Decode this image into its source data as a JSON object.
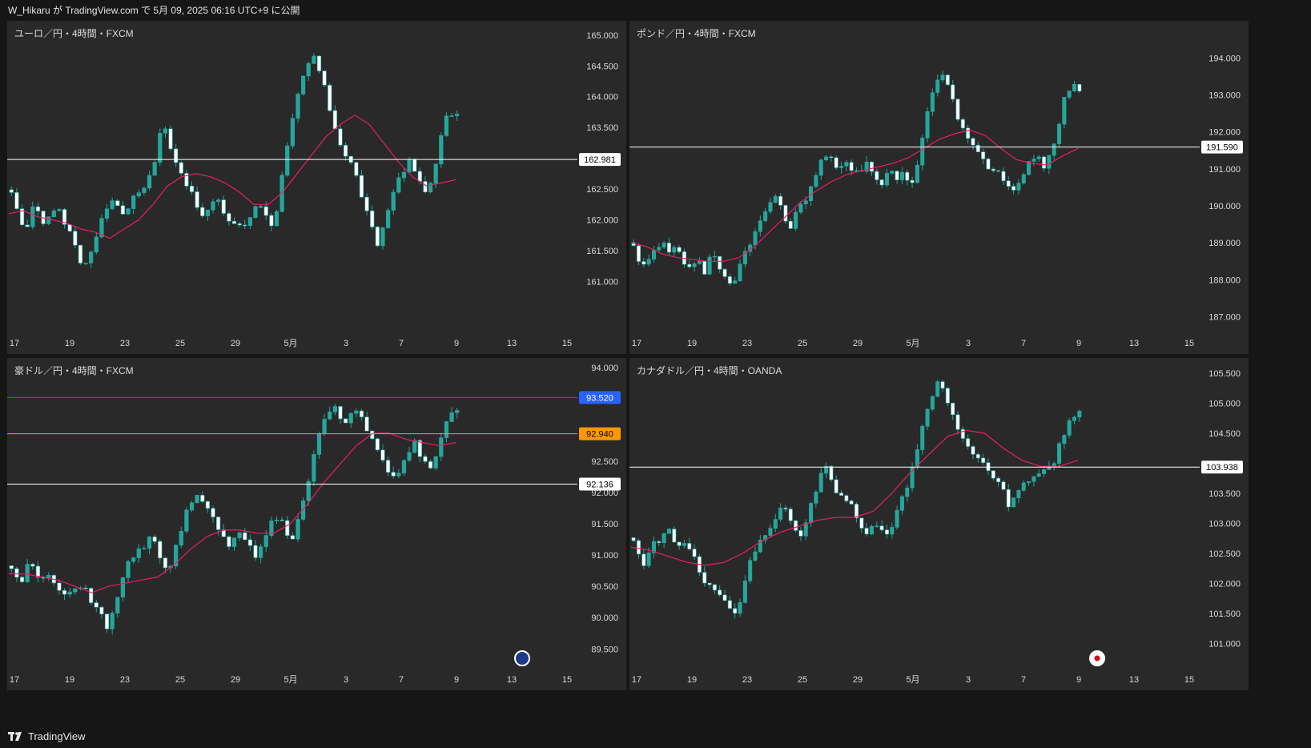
{
  "header": {
    "text": "W_Hikaru が TradingView.com で 5月 09, 2025 06:16 UTC+9 に公開"
  },
  "footer": {
    "brand": "TradingView"
  },
  "colors": {
    "up": "#26a69a",
    "down": "#ffffff",
    "ma": "#e91e63",
    "bg": "#292929",
    "axis_text": "#d8d8d8",
    "grid_bg": "#161616"
  },
  "x_axis": {
    "ticks": [
      "17",
      "19",
      "23",
      "25",
      "29",
      "5月",
      "3",
      "7",
      "9",
      "13",
      "15"
    ]
  },
  "chart_data": [
    {
      "type": "candlestick",
      "title": "ユーロ／円・4時間・FXCM",
      "y_ticks": [
        165.0,
        164.5,
        164.0,
        163.5,
        163.0,
        162.5,
        162.0,
        161.5,
        161.0
      ],
      "y_tick_labels": [
        "165.000",
        "164.500",
        "164.000",
        "163.500",
        "163.000",
        "162.500",
        "162.000",
        "161.500",
        "161.000"
      ],
      "ylim": [
        160.55,
        165.05
      ],
      "hlines": [
        {
          "value": 162.981,
          "label": "162.981",
          "color": "#ffffff",
          "label_bg": "#ffffff",
          "label_fg": "#000000"
        }
      ],
      "path": [
        162.4,
        162.0,
        161.9,
        162.3,
        161.95,
        162.1,
        162.2,
        161.85,
        161.6,
        161.2,
        161.5,
        161.9,
        162.2,
        162.4,
        162.05,
        162.3,
        162.45,
        162.6,
        162.95,
        163.6,
        163.2,
        162.85,
        162.6,
        162.3,
        162.05,
        162.2,
        162.35,
        162.0,
        161.95,
        161.85,
        162.05,
        162.35,
        162.05,
        161.9,
        162.7,
        163.4,
        164.0,
        164.45,
        164.65,
        164.3,
        163.8,
        163.35,
        163.05,
        162.85,
        162.4,
        161.95,
        161.6,
        162.0,
        162.5,
        162.7,
        162.95,
        162.7,
        162.5,
        162.6,
        163.4,
        163.75,
        163.7
      ],
      "ma": [
        162.1,
        162.15,
        162.05,
        162.0,
        161.95,
        161.85,
        161.8,
        161.7,
        161.85,
        162.0,
        162.25,
        162.55,
        162.7,
        162.75,
        162.7,
        162.6,
        162.45,
        162.25,
        162.25,
        162.45,
        162.75,
        163.05,
        163.35,
        163.55,
        163.7,
        163.55,
        163.25,
        162.95,
        162.7,
        162.55,
        162.6,
        162.65
      ],
      "x_labels": [
        "17",
        "19",
        "23",
        "25",
        "29",
        "5月",
        "3",
        "7",
        "9",
        "13",
        "15"
      ]
    },
    {
      "type": "candlestick",
      "title": "ポンド／円・4時間・FXCM",
      "y_ticks": [
        194.0,
        193.0,
        192.0,
        191.0,
        190.0,
        189.0,
        188.0,
        187.0
      ],
      "y_tick_labels": [
        "194.000",
        "193.000",
        "192.000",
        "191.000",
        "190.000",
        "189.000",
        "188.000",
        "187.000"
      ],
      "ylim": [
        186.6,
        194.7
      ],
      "hlines": [
        {
          "value": 191.59,
          "label": "191.590",
          "color": "#ffffff",
          "label_bg": "#ffffff",
          "label_fg": "#000000"
        }
      ],
      "path": [
        189.0,
        188.2,
        188.6,
        188.9,
        189.0,
        188.8,
        188.9,
        188.5,
        188.35,
        188.6,
        188.2,
        188.7,
        188.4,
        188.0,
        187.9,
        188.4,
        188.9,
        189.2,
        189.6,
        190.0,
        190.3,
        189.8,
        189.4,
        189.8,
        190.1,
        190.5,
        191.0,
        191.4,
        191.2,
        190.9,
        191.2,
        191.0,
        190.95,
        191.2,
        190.8,
        190.55,
        191.0,
        190.75,
        190.9,
        190.55,
        191.0,
        192.1,
        192.9,
        193.5,
        193.6,
        192.9,
        192.2,
        191.9,
        191.6,
        191.3,
        191.1,
        190.9,
        190.8,
        190.5,
        190.4,
        190.85,
        191.2,
        191.3,
        191.05,
        191.5,
        192.1,
        193.0,
        193.3,
        193.2
      ],
      "ma": [
        189.0,
        188.9,
        188.7,
        188.6,
        188.55,
        188.5,
        188.5,
        188.6,
        188.9,
        189.3,
        189.7,
        190.1,
        190.4,
        190.65,
        190.85,
        190.95,
        191.05,
        191.15,
        191.3,
        191.55,
        191.8,
        191.95,
        192.05,
        191.9,
        191.55,
        191.25,
        191.15,
        191.1,
        191.35,
        191.55
      ],
      "x_labels": [
        "17",
        "19",
        "23",
        "25",
        "29",
        "5月",
        "3",
        "7",
        "9",
        "13",
        "15"
      ]
    },
    {
      "type": "candlestick",
      "title": "豪ドル／円・4時間・FXCM",
      "y_ticks": [
        94.0,
        92.5,
        92.0,
        91.5,
        91.0,
        90.5,
        90.0,
        89.5
      ],
      "y_tick_labels": [
        "94.000",
        "92.500",
        "92.000",
        "91.500",
        "91.000",
        "90.500",
        "90.000",
        "89.500"
      ],
      "ylim": [
        89.35,
        94.05
      ],
      "hlines": [
        {
          "value": 93.52,
          "label": "93.520",
          "color": "#2962ff",
          "label_bg": "#2962ff",
          "label_fg": "#ffffff"
        },
        {
          "value": 92.94,
          "label": "92.940",
          "color": "#ff9800",
          "label_bg": "#ff9800",
          "label_fg": "#000000"
        },
        {
          "value": 92.136,
          "label": "92.136",
          "color": "#ffffff",
          "label_bg": "#ffffff",
          "label_fg": "#000000"
        }
      ],
      "path": [
        90.8,
        90.5,
        90.9,
        90.7,
        90.65,
        90.55,
        90.4,
        90.35,
        90.55,
        90.3,
        90.1,
        89.85,
        90.3,
        90.8,
        91.0,
        91.1,
        91.35,
        91.0,
        90.7,
        91.2,
        91.7,
        92.0,
        91.8,
        91.6,
        91.3,
        91.15,
        91.4,
        91.2,
        90.9,
        91.3,
        91.6,
        91.5,
        91.2,
        91.7,
        92.2,
        92.8,
        93.3,
        93.4,
        93.1,
        93.3,
        93.2,
        92.9,
        92.7,
        92.3,
        92.2,
        92.5,
        92.85,
        92.55,
        92.4,
        92.8,
        93.3,
        93.35
      ],
      "ma": [
        90.7,
        90.7,
        90.65,
        90.6,
        90.5,
        90.4,
        90.5,
        90.55,
        90.6,
        90.65,
        90.85,
        91.1,
        91.3,
        91.4,
        91.4,
        91.35,
        91.35,
        91.5,
        91.8,
        92.15,
        92.45,
        92.75,
        92.95,
        92.95,
        92.85,
        92.8,
        92.75,
        92.8
      ],
      "x_labels": [
        "17",
        "19",
        "23",
        "25",
        "29",
        "5月",
        "3",
        "7",
        "9",
        "13",
        "15"
      ]
    },
    {
      "type": "candlestick",
      "title": "カナダドル／円・4時間・OANDA",
      "y_ticks": [
        105.5,
        105.0,
        104.5,
        103.5,
        103.0,
        102.5,
        102.0,
        101.5,
        101.0
      ],
      "y_tick_labels": [
        "105.500",
        "105.000",
        "104.500",
        "103.500",
        "103.000",
        "102.500",
        "102.000",
        "101.500",
        "101.000"
      ],
      "ylim": [
        100.75,
        105.65
      ],
      "hlines": [
        {
          "value": 103.938,
          "label": "103.938",
          "color": "#ffffff",
          "label_bg": "#ffffff",
          "label_fg": "#000000"
        }
      ],
      "path": [
        102.7,
        102.3,
        102.6,
        102.75,
        102.9,
        102.6,
        102.7,
        102.4,
        102.0,
        101.95,
        101.8,
        101.6,
        101.5,
        102.3,
        102.6,
        102.8,
        102.95,
        103.3,
        103.0,
        102.75,
        103.2,
        103.6,
        104.0,
        103.6,
        103.4,
        103.3,
        102.9,
        102.85,
        103.05,
        102.8,
        103.15,
        103.5,
        104.0,
        104.6,
        105.0,
        105.4,
        105.0,
        104.6,
        104.4,
        104.15,
        104.0,
        103.85,
        103.6,
        103.3,
        103.5,
        103.7,
        103.85,
        103.9,
        104.0,
        104.4,
        104.8,
        104.85
      ],
      "ma": [
        102.6,
        102.55,
        102.45,
        102.35,
        102.3,
        102.35,
        102.5,
        102.7,
        102.85,
        102.95,
        103.05,
        103.1,
        103.1,
        103.2,
        103.5,
        103.85,
        104.15,
        104.45,
        104.55,
        104.5,
        104.25,
        104.05,
        103.95,
        103.95,
        104.05
      ],
      "x_labels": [
        "17",
        "19",
        "23",
        "25",
        "29",
        "5月",
        "3",
        "7",
        "9",
        "13",
        "15"
      ]
    }
  ]
}
